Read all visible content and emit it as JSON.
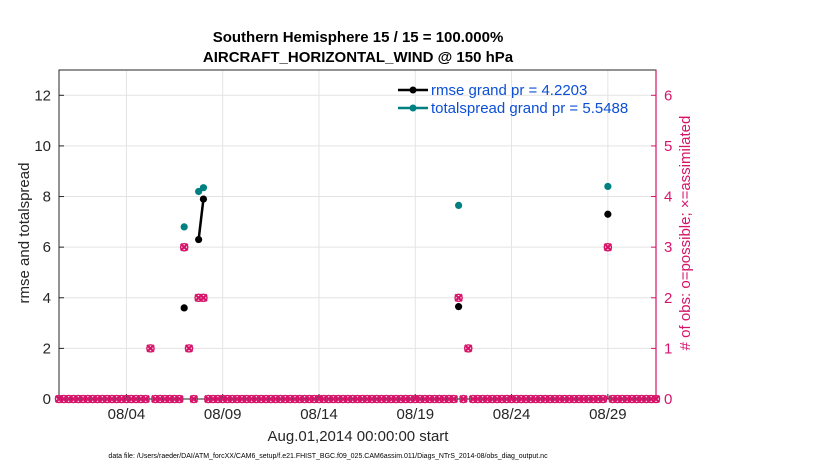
{
  "chart_data": {
    "type": "scatter",
    "title": "Southern Hemisphere 15 / 15 = 100.000%",
    "subtitle": "AIRCRAFT_HORIZONTAL_WIND @ 150 hPa",
    "xlabel": "Aug.01,2014 00:00:00 start",
    "ylabel": "rmse and totalspread",
    "ylabel_right": "# of obs: o=possible; ×=assimilated",
    "footnote": "data file: /Users/raeder/DAI/ATM_forcXX/CAM6_setup/f.e21.FHIST_BGC.f09_025.CAM6assim.011/Diags_NTrS_2014-08/obs_diag_output.nc",
    "xlim": [
      0.0,
      31.0
    ],
    "ylim": [
      0,
      13
    ],
    "ylim_right": [
      0,
      6.5
    ],
    "x_ticks": [
      3.5,
      8.5,
      13.5,
      18.5,
      23.5,
      28.5
    ],
    "x_tick_labels": [
      "08/04",
      "08/09",
      "08/14",
      "08/19",
      "08/24",
      "08/29"
    ],
    "y_ticks": [
      0,
      2,
      4,
      6,
      8,
      10,
      12
    ],
    "y_tick_labels": [
      "0",
      "2",
      "4",
      "6",
      "8",
      "10",
      "12"
    ],
    "y_ticks_right": [
      0,
      1,
      2,
      3,
      4,
      5,
      6
    ],
    "y_tick_labels_right": [
      "0",
      "1",
      "2",
      "3",
      "4",
      "5",
      "6"
    ],
    "grid": true,
    "colors": {
      "rmse": "#000000",
      "totalspread": "#008080",
      "obs": "#d6156a",
      "axis_right": "#d6156a"
    },
    "series": [
      {
        "name": "rmse grand pr = 4.2203",
        "color": "#000000",
        "segments": [
          [
            [
              6.5,
              3.6
            ]
          ],
          [
            [
              7.25,
              6.3
            ],
            [
              7.5,
              7.9
            ]
          ],
          [
            [
              20.75,
              3.65
            ]
          ],
          [
            [
              28.5,
              7.3
            ]
          ]
        ]
      },
      {
        "name": "totalspread grand pr = 5.5488",
        "color": "#008080",
        "segments": [
          [
            [
              6.5,
              6.8
            ]
          ],
          [
            [
              7.25,
              8.2
            ]
          ],
          [
            [
              7.5,
              8.35
            ]
          ],
          [
            [
              20.75,
              7.65
            ]
          ],
          [
            [
              28.5,
              8.4
            ]
          ]
        ]
      }
    ],
    "obs_possible": {
      "name": "possible",
      "x": [
        4.75,
        6.5,
        6.75,
        7.25,
        7.5,
        20.75,
        21.25,
        28.5
      ],
      "values": [
        1,
        3,
        1,
        2,
        2,
        2,
        1,
        3
      ]
    },
    "obs_assimilated": {
      "name": "assimilated",
      "x": [
        4.75,
        6.5,
        6.75,
        7.25,
        7.5,
        20.75,
        21.25,
        28.5
      ],
      "values": [
        1,
        3,
        1,
        2,
        2,
        2,
        1,
        3
      ]
    },
    "obs_zero_step": 0.25
  }
}
